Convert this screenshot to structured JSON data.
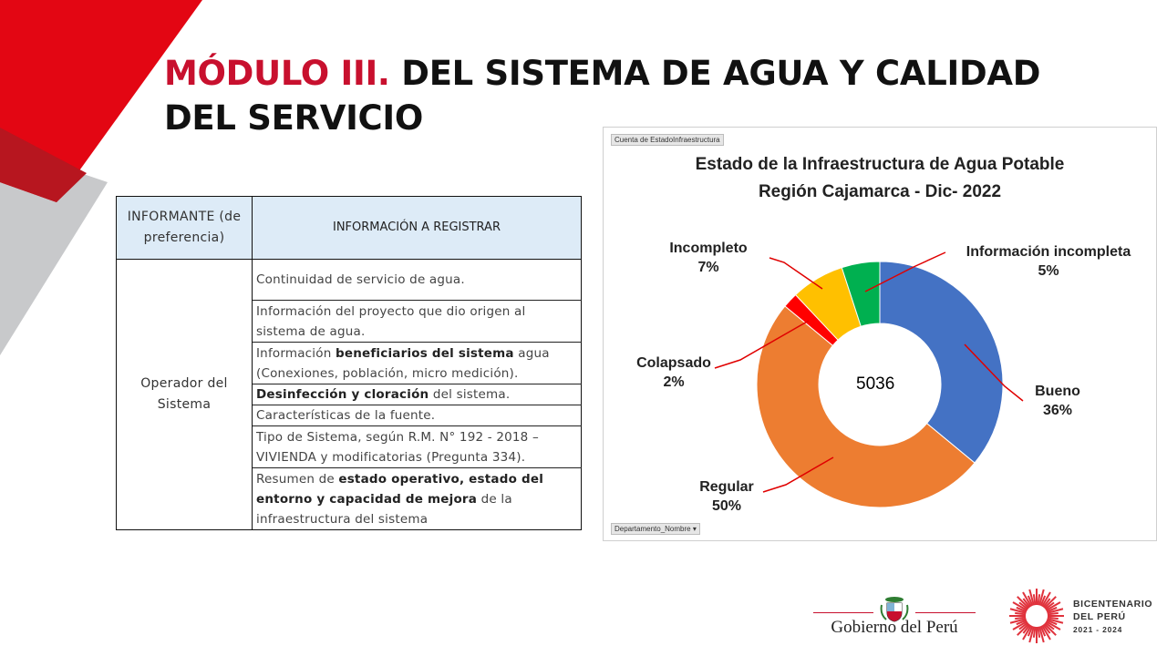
{
  "slide": {
    "title_prefix": "MÓDULO III.",
    "title_rest": "DEL SISTEMA DE AGUA Y CALIDAD DEL SERVICIO",
    "colors": {
      "accent_red": "#c8102e",
      "header_fill": "#ddebf7"
    }
  },
  "table": {
    "headers": {
      "informante": "INFORMANTE (de preferencia)",
      "informacion": "INFORMACIÓN A REGISTRAR"
    },
    "informante_value": "Operador del Sistema",
    "rows": [
      {
        "pre": "Continuidad de servicio de agua.",
        "bold": "",
        "post": ""
      },
      {
        "pre": "Información del proyecto que dio origen al sistema de agua.",
        "bold": "",
        "post": ""
      },
      {
        "pre": "Información ",
        "bold": "beneficiarios del sistema",
        "post": " agua (Conexiones, población, micro medición)."
      },
      {
        "pre": "",
        "bold": "Desinfección y cloración",
        "post": " del sistema."
      },
      {
        "pre": "Características de la fuente.",
        "bold": "",
        "post": ""
      },
      {
        "pre": "Tipo de Sistema, según R.M. N° 192 - 2018 – VIVIENDA y modificatorias (Pregunta 334).",
        "bold": "",
        "post": ""
      },
      {
        "pre": "Resumen de ",
        "bold": "estado operativo, estado del entorno y capacidad de mejora",
        "post": " de la infraestructura del sistema"
      }
    ]
  },
  "chart_data": {
    "type": "pie",
    "donut": true,
    "title": "Estado de la Infraestructura de Agua Potable",
    "subtitle": "Región Cajamarca - Dic- 2022",
    "center_value": "5036",
    "value_field_button": "Cuenta de EstadoInfraestructura",
    "filter_field_button": "Departamento_Nombre",
    "slices": [
      {
        "label": "Bueno",
        "percent_label": "36%",
        "value": 36,
        "color": "#4472c4"
      },
      {
        "label": "Regular",
        "percent_label": "50%",
        "value": 50,
        "color": "#ed7d31"
      },
      {
        "label": "Colapsado",
        "percent_label": "2%",
        "value": 2,
        "color": "#ff0000"
      },
      {
        "label": "Incompleto",
        "percent_label": "7%",
        "value": 7,
        "color": "#ffc000"
      },
      {
        "label": "Información incompleta",
        "percent_label": "5%",
        "value": 5,
        "color": "#00b050"
      }
    ]
  },
  "footer": {
    "gobierno": "Gobierno del Perú",
    "bicentenario_line1": "BICENTENARIO",
    "bicentenario_line2": "DEL PERÚ",
    "bicentenario_years": "2021 - 2024"
  }
}
